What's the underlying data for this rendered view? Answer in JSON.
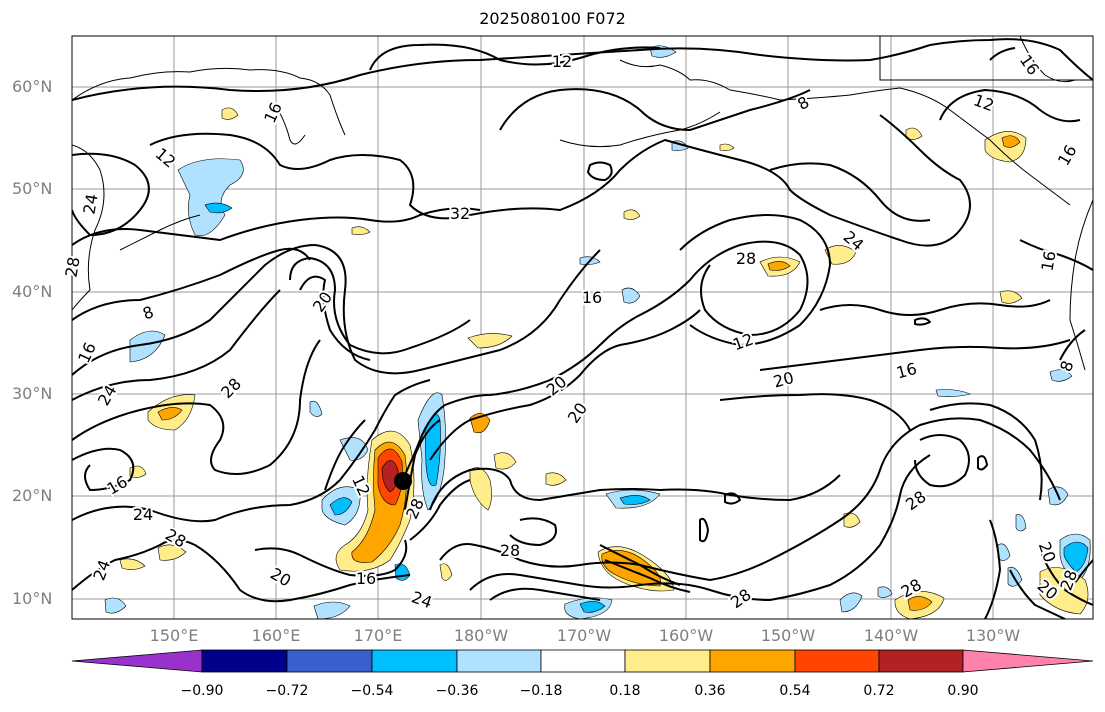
{
  "title": "2025080100 F072",
  "map": {
    "lat_labels": [
      "60°N",
      "50°N",
      "40°N",
      "30°N",
      "20°N",
      "10°N"
    ],
    "lon_labels": [
      "150°E",
      "160°E",
      "170°E",
      "180°W",
      "170°W",
      "160°W",
      "150°W",
      "140°W",
      "130°W"
    ],
    "contour_labels": [
      "12",
      "16",
      "16",
      "12",
      "8",
      "12",
      "16",
      "24",
      "32",
      "24",
      "28",
      "28",
      "16",
      "20",
      "16",
      "8",
      "12",
      "16",
      "8",
      "20",
      "16",
      "20",
      "24",
      "28",
      "20",
      "16",
      "12",
      "24",
      "28",
      "28",
      "28",
      "28",
      "20",
      "24"
    ],
    "marker_position": {
      "lon": 173,
      "lat": 21.5
    }
  },
  "colorbar": {
    "tick_labels": [
      "−0.90",
      "−0.72",
      "−0.54",
      "−0.36",
      "−0.18",
      "0.18",
      "0.36",
      "0.54",
      "0.72",
      "0.90"
    ],
    "levels": [
      -0.9,
      -0.72,
      -0.54,
      -0.36,
      -0.18,
      0.18,
      0.36,
      0.54,
      0.72,
      0.9
    ],
    "colors": [
      "#9932cc",
      "#00008b",
      "#3a5fcd",
      "#00bfff",
      "#b0e2ff",
      "#ffffff",
      "#ffec8b",
      "#ffa500",
      "#ff4500",
      "#b22222",
      "#ff82ab"
    ]
  }
}
